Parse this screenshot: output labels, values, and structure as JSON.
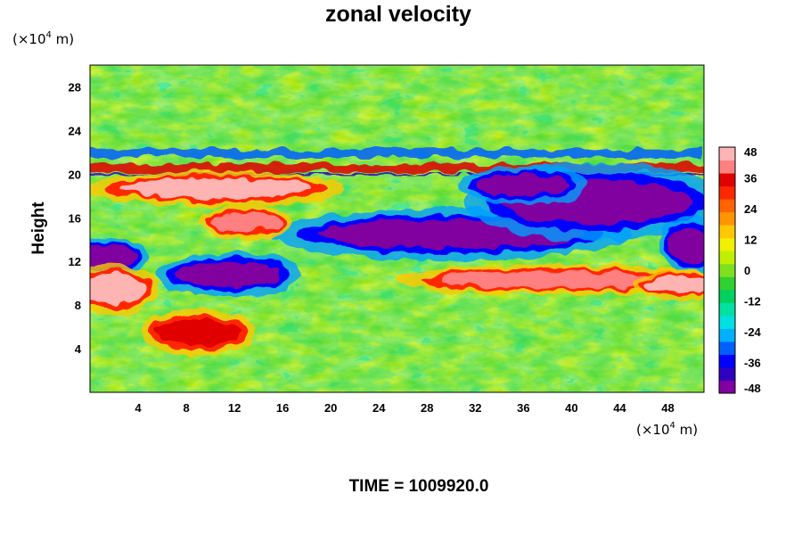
{
  "chart_data": {
    "type": "heatmap",
    "title": "zonal velocity",
    "ylabel": "Height",
    "x_unit_prefix": "(×10",
    "x_unit_exp": "4",
    "x_unit_suffix": " m)",
    "y_unit_prefix": "(×10",
    "y_unit_exp": "4",
    "y_unit_suffix": " m)",
    "xlim": [
      0,
      51
    ],
    "ylim": [
      0,
      30
    ],
    "x_ticks": [
      4,
      8,
      12,
      16,
      20,
      24,
      28,
      32,
      36,
      40,
      44,
      48
    ],
    "y_ticks": [
      4,
      8,
      12,
      16,
      20,
      24,
      28
    ],
    "colorbar": {
      "range": [
        -48,
        48
      ],
      "ticks": [
        48,
        36,
        24,
        12,
        0,
        -12,
        -24,
        -36,
        -48
      ],
      "colors": [
        "#8000a0",
        "#3000c0",
        "#0000ff",
        "#0060ff",
        "#00b0ff",
        "#00e0e0",
        "#00e0a0",
        "#00d060",
        "#30d030",
        "#80e020",
        "#c0f000",
        "#f0f000",
        "#ffc800",
        "#ff9600",
        "#ff6400",
        "#ff2800",
        "#e00000",
        "#ff8080",
        "#ffb4b4"
      ]
    },
    "features": [
      {
        "kind": "band",
        "label": "upper positive layer",
        "x": [
          0,
          51
        ],
        "y": [
          20.2,
          21.0
        ],
        "value": 36
      },
      {
        "kind": "band",
        "label": "upper negative strip",
        "x": [
          0,
          51
        ],
        "y": [
          21.5,
          22.3
        ],
        "value": -28
      },
      {
        "kind": "band",
        "label": "thin negative line",
        "x": [
          0,
          51
        ],
        "y": [
          19.9,
          20.1
        ],
        "value": -40
      },
      {
        "kind": "blob",
        "label": "positive jet upper left",
        "cx": 10.5,
        "cy": 18.7,
        "rx": 8.0,
        "ry": 0.9,
        "value": 48
      },
      {
        "kind": "blob",
        "label": "negative jet center",
        "cx": 30,
        "cy": 14.5,
        "rx": 11,
        "ry": 1.3,
        "value": -48
      },
      {
        "kind": "blob",
        "label": "negative jet right",
        "cx": 42,
        "cy": 17.5,
        "rx": 8,
        "ry": 2.0,
        "value": -48
      },
      {
        "kind": "blob",
        "label": "negative jet upper right",
        "cx": 36,
        "cy": 19,
        "rx": 4,
        "ry": 1.0,
        "value": -48
      },
      {
        "kind": "blob",
        "label": "negative jet left",
        "cx": 11.5,
        "cy": 10.8,
        "rx": 4.5,
        "ry": 1.1,
        "value": -48
      },
      {
        "kind": "blob",
        "label": "negative jet far left",
        "cx": 1.5,
        "cy": 12.5,
        "rx": 2.5,
        "ry": 1.0,
        "value": -45
      },
      {
        "kind": "blob",
        "label": "negative far right",
        "cx": 50,
        "cy": 13.5,
        "rx": 2,
        "ry": 1.6,
        "value": -45
      },
      {
        "kind": "blob",
        "label": "positive jet right",
        "cx": 39,
        "cy": 10.3,
        "rx": 10,
        "ry": 0.8,
        "value": 42
      },
      {
        "kind": "blob",
        "label": "positive far right",
        "cx": 49,
        "cy": 9.8,
        "rx": 3,
        "ry": 0.8,
        "value": 44
      },
      {
        "kind": "blob",
        "label": "positive left",
        "cx": 1.8,
        "cy": 9.5,
        "rx": 2.8,
        "ry": 1.3,
        "value": 46
      },
      {
        "kind": "blob",
        "label": "positive lower left",
        "cx": 9,
        "cy": 5.5,
        "rx": 3.5,
        "ry": 1.2,
        "value": 34
      },
      {
        "kind": "blob",
        "label": "positive upper left small",
        "cx": 13,
        "cy": 15.6,
        "rx": 2.8,
        "ry": 0.9,
        "value": 40
      }
    ],
    "annotation": "TIME = 1009920.0"
  }
}
